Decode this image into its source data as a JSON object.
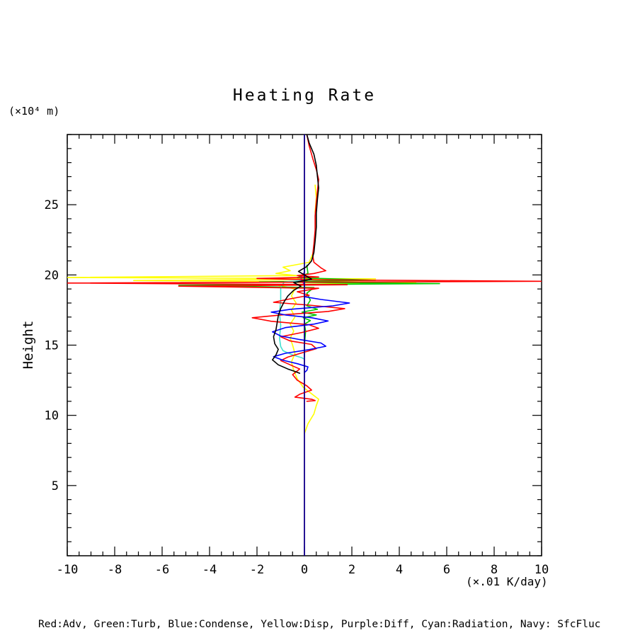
{
  "chart_data": {
    "type": "line",
    "title": "Heating Rate",
    "xlabel": "(×.01 K/day)",
    "ylabel": "Height",
    "y_unit_label": "(×10⁴ m)",
    "legend_text": "Red:Adv, Green:Turb, Blue:Condense, Yellow:Disp, Purple:Diff, Cyan:Radiation, Navy: SfcFluc",
    "xlim": [
      -10,
      10
    ],
    "ylim": [
      0,
      30
    ],
    "x_ticks": [
      -10,
      -8,
      -6,
      -4,
      -2,
      0,
      2,
      4,
      6,
      8,
      10
    ],
    "y_ticks": [
      5,
      10,
      15,
      20,
      25
    ],
    "x_minor_step": 0.5,
    "y_minor_step": 1,
    "grid": false,
    "legend_position": "bottom",
    "series": [
      {
        "name": "disp",
        "legend_color": "Yellow",
        "color": "#ffff00",
        "points": [
          [
            0.45,
            26.4
          ],
          [
            0.5,
            25.5
          ],
          [
            0.45,
            24.5
          ],
          [
            0.5,
            23.5
          ],
          [
            0.45,
            22.5
          ],
          [
            0.35,
            21.5
          ],
          [
            0.2,
            20.9
          ],
          [
            -0.9,
            20.55
          ],
          [
            -0.6,
            20.3
          ],
          [
            -1.2,
            20.1
          ],
          [
            -0.3,
            19.95
          ],
          [
            -10,
            19.82
          ],
          [
            3.0,
            19.72
          ],
          [
            -7.2,
            19.6
          ],
          [
            4.7,
            19.48
          ],
          [
            -1.2,
            19.3
          ],
          [
            -0.4,
            19.0
          ],
          [
            -0.55,
            18.5
          ],
          [
            -0.35,
            18.0
          ],
          [
            -0.55,
            17.5
          ],
          [
            -0.4,
            17.0
          ],
          [
            -0.6,
            16.5
          ],
          [
            -0.45,
            16.0
          ],
          [
            -0.6,
            15.5
          ],
          [
            -0.5,
            15.0
          ],
          [
            -0.4,
            14.4
          ],
          [
            -0.55,
            13.8
          ],
          [
            -0.45,
            13.2
          ],
          [
            -0.3,
            12.6
          ],
          [
            -0.05,
            12.0
          ],
          [
            0.25,
            11.6
          ],
          [
            0.6,
            11.15
          ],
          [
            0.5,
            10.7
          ],
          [
            0.4,
            10.1
          ],
          [
            0.15,
            9.4
          ],
          [
            0.0,
            8.7
          ]
        ]
      },
      {
        "name": "turb",
        "legend_color": "Green",
        "color": "#00c800",
        "points": [
          [
            0.1,
            20.7
          ],
          [
            0.15,
            20.1
          ],
          [
            -0.3,
            19.8
          ],
          [
            3.0,
            19.62
          ],
          [
            -1.9,
            19.5
          ],
          [
            5.7,
            19.38
          ],
          [
            -5.3,
            19.26
          ],
          [
            0.4,
            19.1
          ],
          [
            0.1,
            18.7
          ],
          [
            0.25,
            18.2
          ],
          [
            0.1,
            17.8
          ],
          [
            0.55,
            17.55
          ],
          [
            -0.1,
            17.35
          ],
          [
            0.5,
            17.15
          ],
          [
            -0.05,
            16.95
          ],
          [
            0.25,
            16.75
          ],
          [
            0.0,
            16.5
          ],
          [
            0.05,
            16.0
          ],
          [
            0.0,
            15.0
          ],
          [
            0.0,
            14.2
          ]
        ]
      },
      {
        "name": "radiation",
        "legend_color": "Cyan",
        "color": "#40e0d0",
        "points": [
          [
            0.0,
            19.62
          ],
          [
            -0.85,
            19.5
          ],
          [
            -1.0,
            19.1
          ],
          [
            -1.0,
            18.2
          ],
          [
            -1.05,
            17.3
          ],
          [
            -1.0,
            16.4
          ],
          [
            -1.05,
            15.5
          ],
          [
            -1.0,
            14.9
          ],
          [
            -0.9,
            14.6
          ],
          [
            -0.5,
            14.3
          ],
          [
            -0.1,
            14.1
          ],
          [
            0.0,
            14.0
          ]
        ]
      },
      {
        "name": "diff",
        "legend_color": "Purple",
        "color": "#9400d3",
        "points": [
          [
            0.0,
            30
          ],
          [
            0.0,
            20.2
          ],
          [
            -0.15,
            19.8
          ],
          [
            -0.1,
            19.55
          ],
          [
            0.0,
            19.3
          ],
          [
            0.0,
            0.0
          ]
        ]
      },
      {
        "name": "adv",
        "legend_color": "Red",
        "color": "#ff0000",
        "points": [
          [
            0.1,
            30
          ],
          [
            0.2,
            29.2
          ],
          [
            0.35,
            28.3
          ],
          [
            0.5,
            27.5
          ],
          [
            0.6,
            26.8
          ],
          [
            0.55,
            26.0
          ],
          [
            0.5,
            25.2
          ],
          [
            0.45,
            24.2
          ],
          [
            0.45,
            23.2
          ],
          [
            0.4,
            22.2
          ],
          [
            0.35,
            21.4
          ],
          [
            0.4,
            20.9
          ],
          [
            0.7,
            20.5
          ],
          [
            0.9,
            20.3
          ],
          [
            0.4,
            20.1
          ],
          [
            -0.3,
            19.95
          ],
          [
            0.6,
            19.85
          ],
          [
            -2.0,
            19.75
          ],
          [
            0.5,
            19.65
          ],
          [
            10,
            19.55
          ],
          [
            -10,
            19.42
          ],
          [
            1.8,
            19.3
          ],
          [
            -5.3,
            19.2
          ],
          [
            0.6,
            19.05
          ],
          [
            -0.3,
            18.8
          ],
          [
            0.2,
            18.55
          ],
          [
            -0.6,
            18.3
          ],
          [
            -1.3,
            18.05
          ],
          [
            0.2,
            17.85
          ],
          [
            1.7,
            17.6
          ],
          [
            1.0,
            17.4
          ],
          [
            -1.0,
            17.15
          ],
          [
            -2.2,
            16.95
          ],
          [
            -1.4,
            16.7
          ],
          [
            0.2,
            16.45
          ],
          [
            0.6,
            16.2
          ],
          [
            -0.1,
            15.9
          ],
          [
            -1.0,
            15.6
          ],
          [
            -0.6,
            15.3
          ],
          [
            0.3,
            15.05
          ],
          [
            0.5,
            14.75
          ],
          [
            -0.1,
            14.45
          ],
          [
            -0.7,
            14.15
          ],
          [
            -1.0,
            13.9
          ],
          [
            -0.6,
            13.6
          ],
          [
            -0.2,
            13.3
          ],
          [
            -0.5,
            12.9
          ],
          [
            -0.3,
            12.5
          ],
          [
            0.1,
            12.1
          ],
          [
            0.3,
            11.8
          ],
          [
            -0.2,
            11.5
          ],
          [
            -0.4,
            11.3
          ],
          [
            0.3,
            11.15
          ],
          [
            0.45,
            11.05
          ],
          [
            0.1,
            11.0
          ]
        ]
      },
      {
        "name": "condense",
        "legend_color": "Blue",
        "color": "#0000ff",
        "points": [
          [
            0.0,
            18.45
          ],
          [
            0.7,
            18.25
          ],
          [
            1.9,
            18.0
          ],
          [
            1.2,
            17.8
          ],
          [
            -0.6,
            17.55
          ],
          [
            -1.4,
            17.35
          ],
          [
            -0.8,
            17.15
          ],
          [
            0.3,
            16.95
          ],
          [
            1.0,
            16.72
          ],
          [
            0.4,
            16.5
          ],
          [
            -0.8,
            16.25
          ],
          [
            -1.35,
            15.95
          ],
          [
            -1.0,
            15.65
          ],
          [
            -0.2,
            15.4
          ],
          [
            0.7,
            15.15
          ],
          [
            0.9,
            14.92
          ],
          [
            0.2,
            14.68
          ],
          [
            -0.8,
            14.42
          ],
          [
            -1.3,
            14.18
          ],
          [
            -0.9,
            13.92
          ],
          [
            -0.3,
            13.68
          ],
          [
            0.15,
            13.45
          ],
          [
            0.1,
            13.2
          ],
          [
            0.0,
            13.05
          ]
        ]
      },
      {
        "name": "sfcfluc",
        "legend_color": "Navy",
        "color": "#000080",
        "points": [
          [
            0.0,
            30
          ],
          [
            0.0,
            0.0
          ]
        ]
      },
      {
        "name": "black-unlabeled",
        "legend_color": "Black",
        "color": "#000000",
        "points": [
          [
            0.1,
            30
          ],
          [
            0.2,
            29.4
          ],
          [
            0.4,
            28.6
          ],
          [
            0.5,
            27.8
          ],
          [
            0.55,
            27.0
          ],
          [
            0.6,
            26.2
          ],
          [
            0.55,
            25.4
          ],
          [
            0.5,
            24.4
          ],
          [
            0.5,
            23.4
          ],
          [
            0.45,
            22.4
          ],
          [
            0.4,
            21.6
          ],
          [
            0.3,
            21.0
          ],
          [
            0.1,
            20.6
          ],
          [
            -0.25,
            20.25
          ],
          [
            0.05,
            19.95
          ],
          [
            0.3,
            19.7
          ],
          [
            -0.45,
            19.45
          ],
          [
            -0.15,
            19.2
          ],
          [
            -0.45,
            18.9
          ],
          [
            -0.7,
            18.5
          ],
          [
            -0.85,
            18.1
          ],
          [
            -1.0,
            17.6
          ],
          [
            -1.1,
            17.1
          ],
          [
            -1.15,
            16.6
          ],
          [
            -1.2,
            16.1
          ],
          [
            -1.3,
            15.6
          ],
          [
            -1.25,
            15.1
          ],
          [
            -1.1,
            14.7
          ],
          [
            -1.2,
            14.3
          ],
          [
            -1.35,
            13.95
          ],
          [
            -1.1,
            13.6
          ],
          [
            -0.7,
            13.3
          ],
          [
            -0.35,
            13.1
          ],
          [
            -0.2,
            13.0
          ]
        ]
      }
    ]
  }
}
